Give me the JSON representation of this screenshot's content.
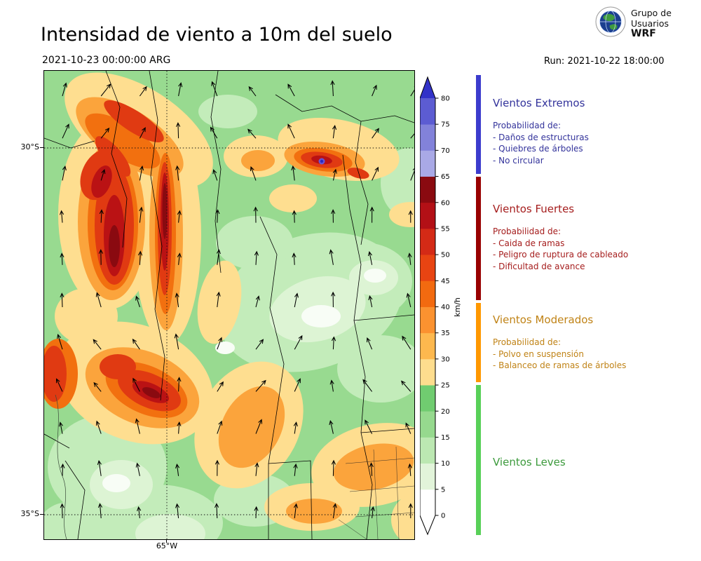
{
  "header": {
    "title": "Intensidad de viento a 10m del suelo",
    "valid_datetime": "2021-10-23 00:00:00 ARG",
    "run_label": "Run: 2021-10-22 18:00:00",
    "brand": {
      "line1": "Grupo de",
      "line2": "Usuarios",
      "line3": "WRF"
    }
  },
  "map": {
    "lat_labels": [
      "30°S",
      "35°S"
    ],
    "lon_label": "65°W"
  },
  "colorbar": {
    "unit": "km/h",
    "ticks": [
      0,
      5,
      10,
      15,
      20,
      25,
      30,
      35,
      40,
      45,
      50,
      55,
      60,
      65,
      70,
      75,
      80
    ],
    "segment_colors": [
      "#ffffff",
      "#e2f4da",
      "#bce8b2",
      "#96d98e",
      "#70cc70",
      "#fedd8e",
      "#fdb84e",
      "#fb9230",
      "#f26a10",
      "#e84412",
      "#d42a16",
      "#b31016",
      "#8a0a10",
      "#a9a9e6",
      "#8282da",
      "#5c5cd2"
    ],
    "over_color": "#3232c8",
    "under_color": "#ffffff"
  },
  "legend": {
    "sections": [
      {
        "title": "Vientos Extremos",
        "text_color": "#33339b",
        "bar_color": "#3c3ccd",
        "lines": [
          "Probabilidad de:",
          "- Daños de estructuras",
          "- Quiebres de árboles",
          "- No circular"
        ]
      },
      {
        "title": "Vientos Fuertes",
        "text_color": "#a51d1d",
        "bar_color": "#990000",
        "lines": [
          "Probabilidad de:",
          "- Caida de ramas",
          "- Peligro de ruptura de cableado",
          "- Dificultad de avance"
        ]
      },
      {
        "title": "Vientos Moderados",
        "text_color": "#c08316",
        "bar_color": "#ff9800",
        "lines": [
          "Probabilidad de:",
          "- Polvo en suspensión",
          "- Balanceo de ramas de árboles"
        ]
      },
      {
        "title": "Vientos Leves",
        "text_color": "#3c9a3c",
        "bar_color": "#58d058",
        "lines": []
      }
    ]
  }
}
